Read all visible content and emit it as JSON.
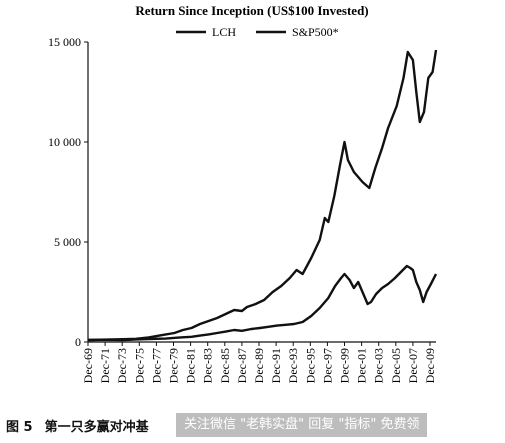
{
  "chart_data": {
    "type": "line",
    "title": "Return Since Inception (US$100 Invested)",
    "xlabel": "",
    "ylabel": "",
    "ylim": [
      0,
      15000
    ],
    "yticks": [
      0,
      5000,
      10000,
      15000
    ],
    "ytick_labels": [
      "0",
      "5 000",
      "10 000",
      "15 000"
    ],
    "xlim": [
      1969.9,
      2010.6
    ],
    "xticks": [
      1969.9,
      1971.9,
      1973.9,
      1975.9,
      1977.9,
      1979.9,
      1981.9,
      1983.9,
      1985.9,
      1987.9,
      1989.9,
      1991.9,
      1993.9,
      1995.9,
      1997.9,
      1999.9,
      2001.9,
      2003.9,
      2005.9,
      2007.9,
      2009.9
    ],
    "xtick_labels": [
      "Dec-69",
      "Dec-71",
      "Dec-73",
      "Dec-75",
      "Dec-77",
      "Dec-79",
      "Dec-81",
      "Dec-83",
      "Dec-85",
      "Dec-87",
      "Dec-89",
      "Dec-91",
      "Dec-93",
      "Dec-95",
      "Dec-97",
      "Dec-99",
      "Dec-01",
      "Dec-03",
      "Dec-05",
      "Dec-07",
      "Dec-09"
    ],
    "grid": false,
    "legend_position": "top-center",
    "series": [
      {
        "name": "LCH",
        "x": [
          1969.9,
          1972,
          1974,
          1975.5,
          1977,
          1978.5,
          1980,
          1981,
          1982,
          1983,
          1984,
          1985,
          1986,
          1987,
          1987.9,
          1988.5,
          1989.5,
          1990.5,
          1991.5,
          1992.5,
          1993.5,
          1994.3,
          1995,
          1996,
          1997,
          1997.6,
          1998,
          1998.7,
          1999.4,
          1999.9,
          2000.3,
          2001,
          2002,
          2002.8,
          2003.5,
          2004.3,
          2005,
          2006,
          2006.8,
          2007.3,
          2007.6,
          2007.9,
          2008.3,
          2008.7,
          2009.2,
          2009.7,
          2010.2,
          2010.6
        ],
        "values": [
          100,
          120,
          140,
          160,
          230,
          340,
          450,
          600,
          700,
          900,
          1050,
          1200,
          1400,
          1600,
          1550,
          1750,
          1900,
          2100,
          2500,
          2800,
          3200,
          3600,
          3400,
          4200,
          5100,
          6200,
          6000,
          7300,
          8900,
          10000,
          9100,
          8500,
          8000,
          7700,
          8700,
          9700,
          10700,
          11800,
          13200,
          14500,
          14300,
          14100,
          12500,
          11000,
          11500,
          13200,
          13500,
          14600
        ]
      },
      {
        "name": "S&P500*",
        "x": [
          1969.9,
          1972,
          1974,
          1975.5,
          1977,
          1979,
          1980.5,
          1982,
          1983,
          1984,
          1985,
          1986,
          1987,
          1987.9,
          1989,
          1990,
          1991,
          1992,
          1993,
          1994,
          1995,
          1996,
          1997,
          1998,
          1998.8,
          1999.5,
          1999.9,
          2000.5,
          2001,
          2001.5,
          2002,
          2002.6,
          2003,
          2003.6,
          2004.3,
          2005,
          2005.8,
          2006.5,
          2007.2,
          2007.6,
          2007.9,
          2008.3,
          2008.7,
          2009.1,
          2009.5,
          2010,
          2010.6
        ],
        "values": [
          100,
          110,
          95,
          130,
          150,
          170,
          220,
          260,
          320,
          380,
          450,
          520,
          600,
          560,
          650,
          700,
          760,
          820,
          860,
          900,
          1000,
          1300,
          1700,
          2200,
          2800,
          3200,
          3400,
          3100,
          2700,
          3000,
          2500,
          1900,
          2000,
          2400,
          2700,
          2900,
          3200,
          3500,
          3800,
          3700,
          3600,
          3000,
          2600,
          2000,
          2500,
          2900,
          3400
        ]
      }
    ]
  },
  "caption": {
    "number": "图 5",
    "text": "第一只多赢对冲基"
  },
  "watermark": {
    "text": "关注微信 \"老韩实盘\" 回复 \"指标\" 免费领"
  }
}
